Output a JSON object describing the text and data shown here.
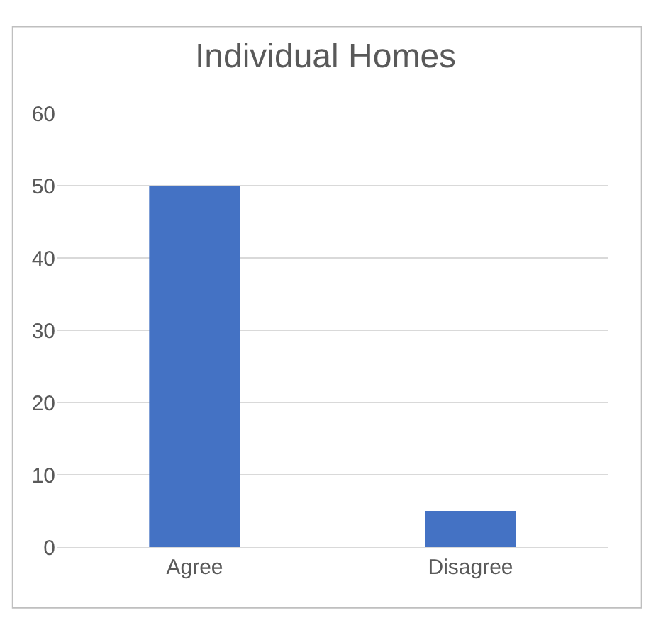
{
  "chart_data": {
    "type": "bar",
    "title": "Individual Homes",
    "categories": [
      "Agree",
      "Disagree"
    ],
    "values": [
      50,
      5
    ],
    "color": "#4472c4",
    "ylim": [
      0,
      60
    ],
    "yticks": [
      0,
      10,
      20,
      30,
      40,
      50,
      60
    ],
    "grid": "y"
  }
}
